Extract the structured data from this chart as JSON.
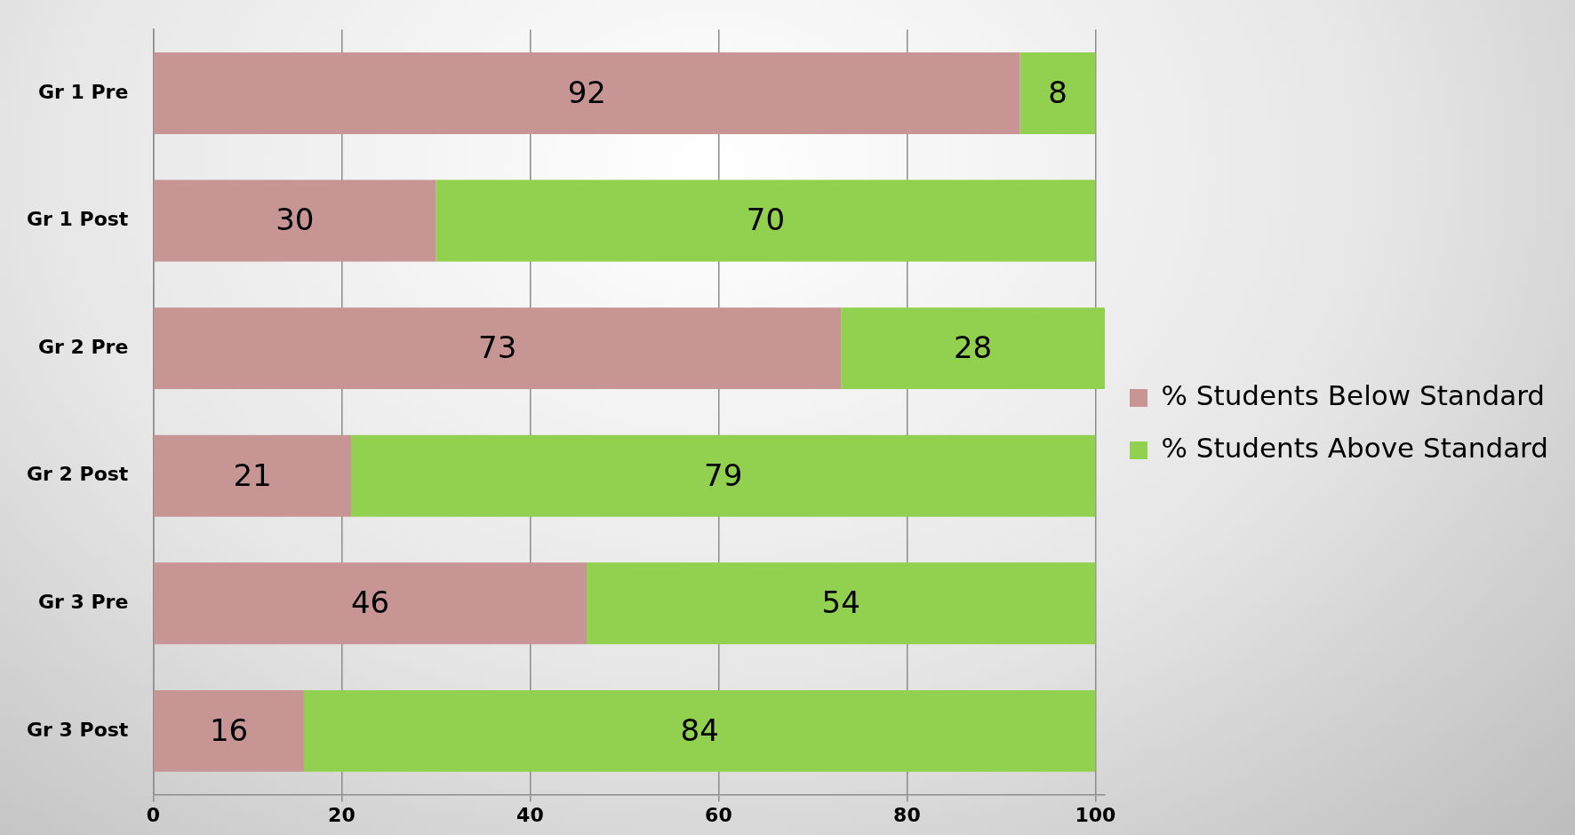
{
  "chart_data": {
    "type": "bar",
    "orientation": "horizontal",
    "stacked": true,
    "categories": [
      "Gr 1 Pre",
      "Gr 1 Post",
      "Gr 2 Pre",
      "Gr 2 Post",
      "Gr 3 Pre",
      "Gr 3 Post"
    ],
    "series": [
      {
        "name": "% Students Below Standard",
        "color": "#c89595",
        "values": [
          92,
          30,
          73,
          21,
          46,
          16
        ]
      },
      {
        "name": "% Students Above Standard",
        "color": "#92d050",
        "values": [
          8,
          70,
          28,
          79,
          54,
          84
        ]
      }
    ],
    "xlim": [
      0,
      101
    ],
    "xticks": [
      0,
      20,
      40,
      60,
      80,
      100
    ],
    "grid": "x",
    "legend": "right",
    "data_labels": true
  }
}
